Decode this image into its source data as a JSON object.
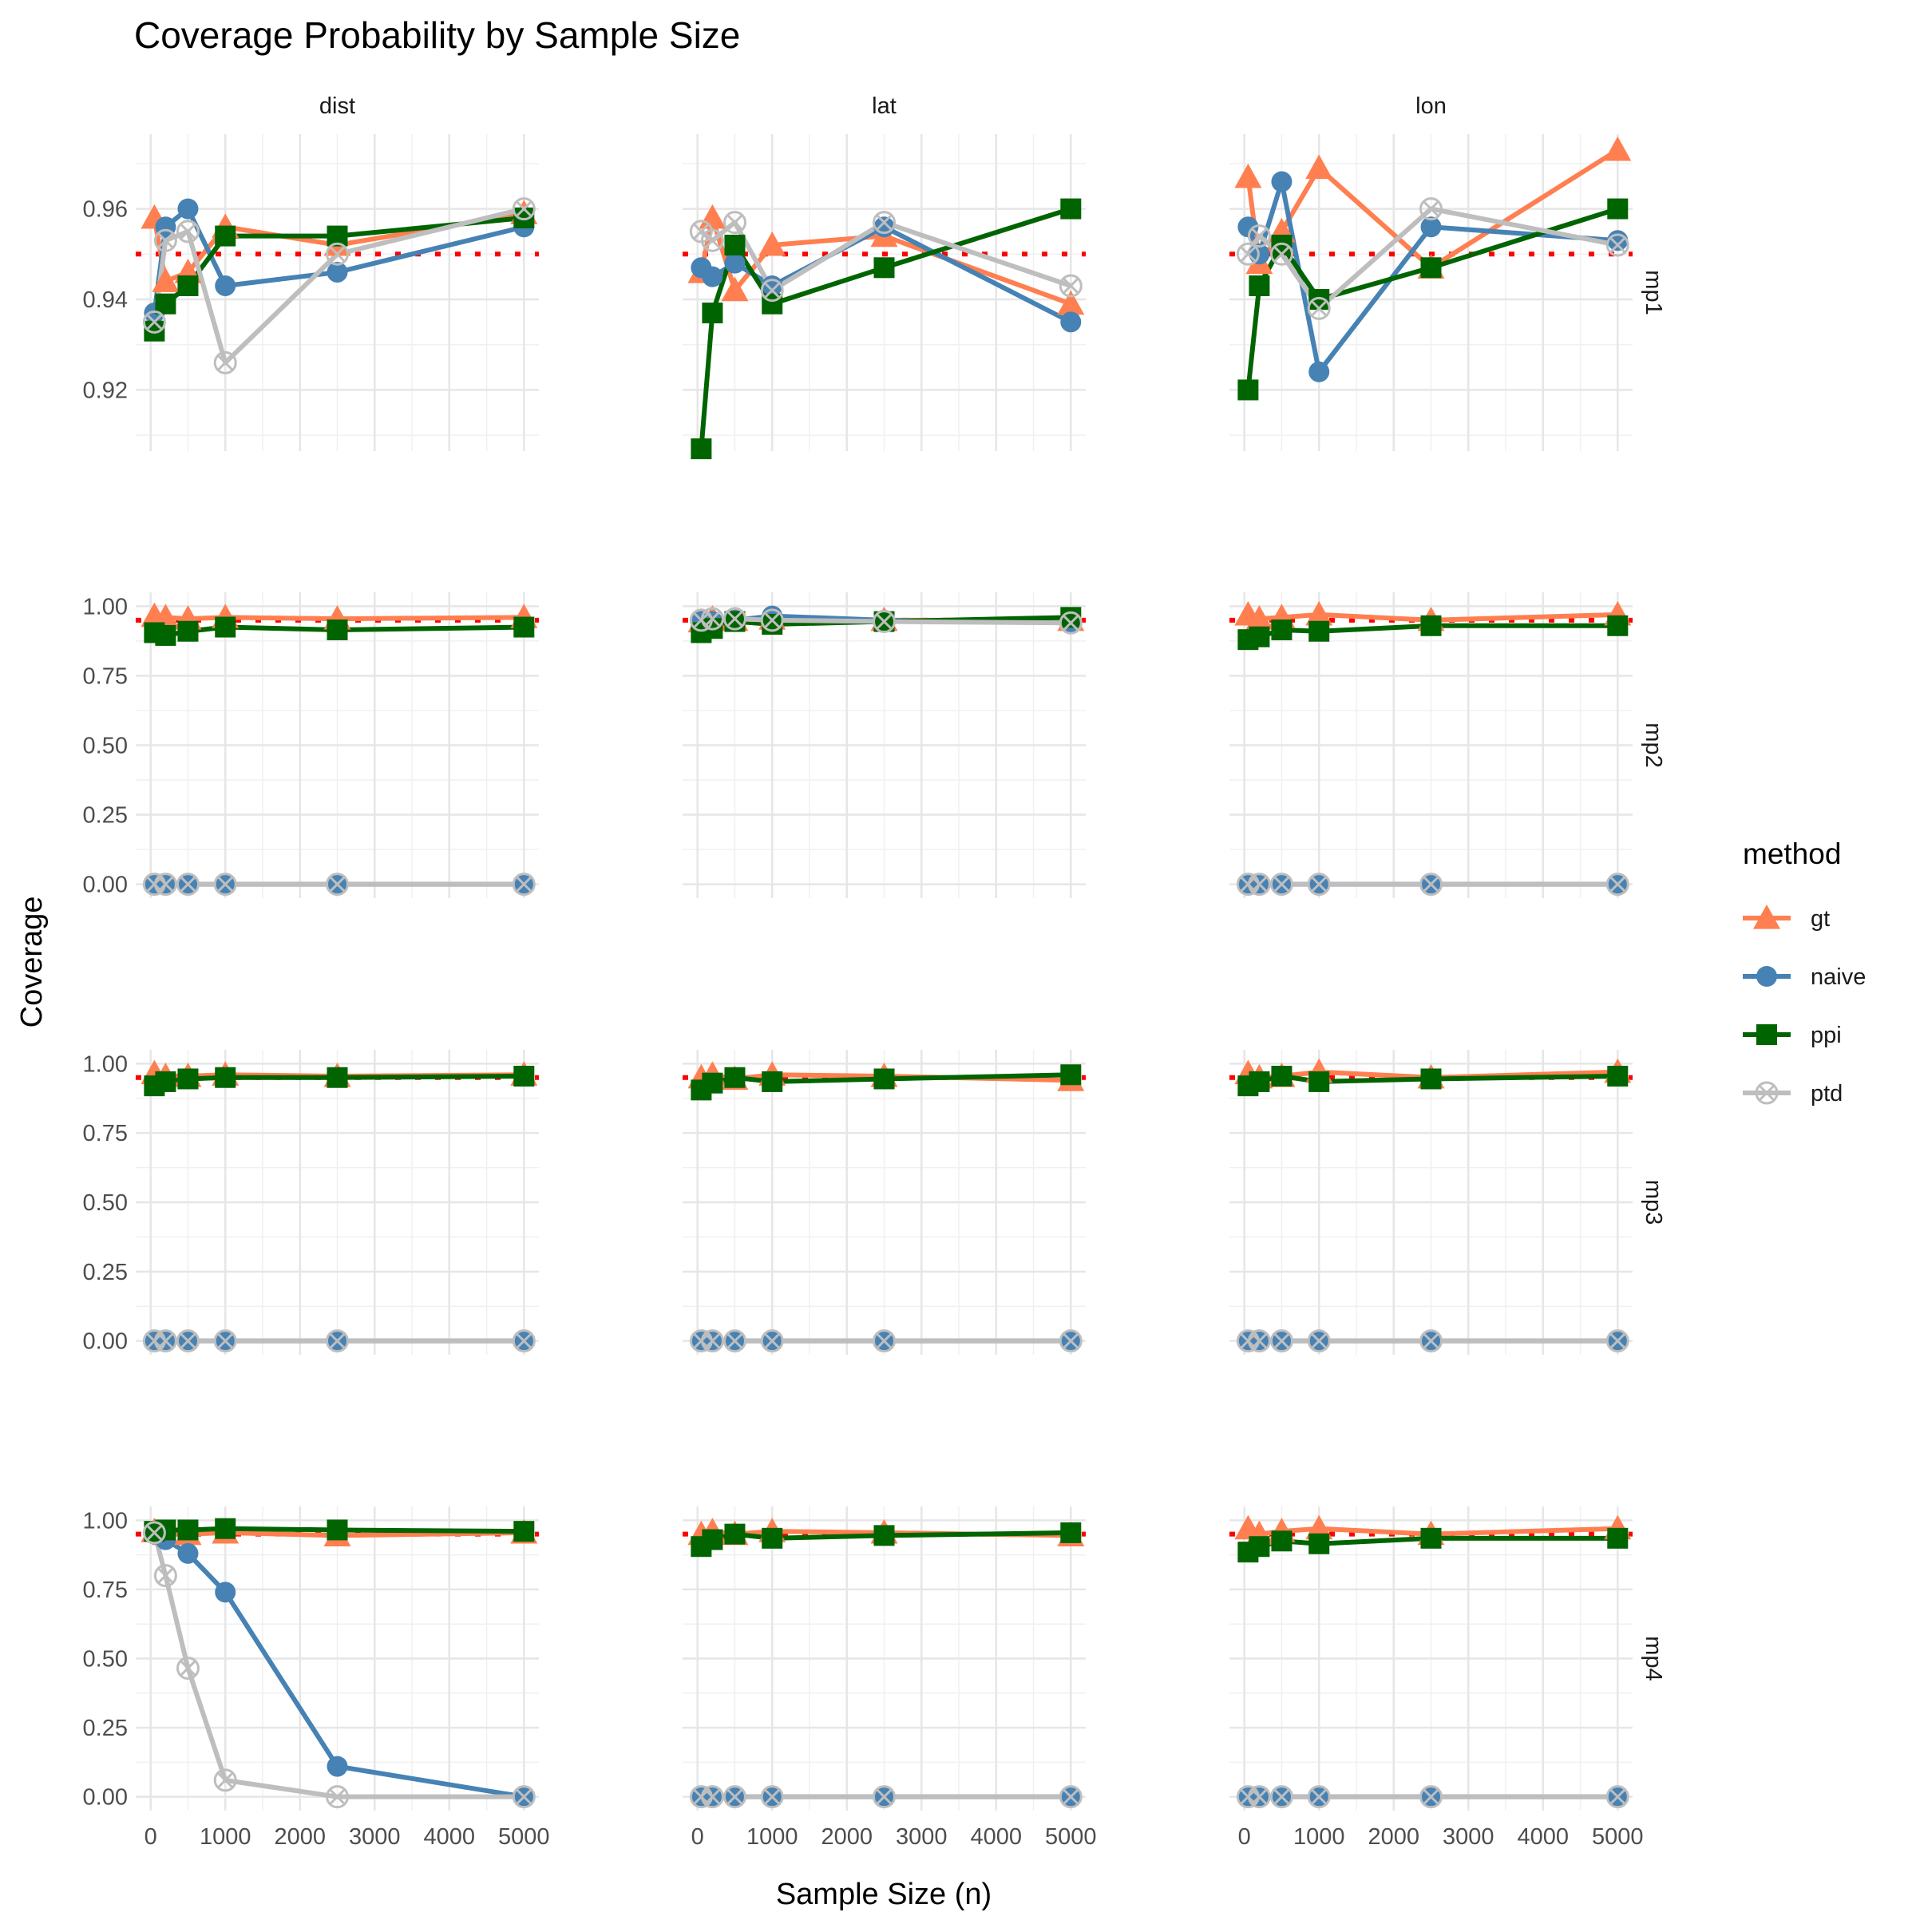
{
  "chart_data": {
    "type": "line",
    "title": "Coverage Probability by Sample Size",
    "xlabel": "Sample Size (n)",
    "ylabel": "Coverage",
    "columns": [
      "dist",
      "lat",
      "lon"
    ],
    "rows": [
      "mp1",
      "mp2",
      "mp3",
      "mp4"
    ],
    "x": [
      50,
      200,
      500,
      1000,
      2500,
      5000
    ],
    "xlim": [
      -200,
      5200
    ],
    "x_ticks": [
      0,
      1000,
      2000,
      3000,
      4000,
      5000
    ],
    "reference_line": 0.95,
    "legend": {
      "title": "method",
      "position": "right"
    },
    "grid": true,
    "row_axes": [
      {
        "ylim": [
          0.9065,
          0.9765
        ],
        "ticks": [
          0.92,
          0.94,
          0.96
        ],
        "tick_labels": [
          "0.92",
          "0.94",
          "0.96"
        ]
      },
      {
        "ylim": [
          -0.05,
          1.05
        ],
        "ticks": [
          0,
          0.25,
          0.5,
          0.75,
          1
        ],
        "tick_labels": [
          "0.00",
          "0.25",
          "0.50",
          "0.75",
          "1.00"
        ]
      },
      {
        "ylim": [
          -0.05,
          1.05
        ],
        "ticks": [
          0,
          0.25,
          0.5,
          0.75,
          1
        ],
        "tick_labels": [
          "0.00",
          "0.25",
          "0.50",
          "0.75",
          "1.00"
        ]
      },
      {
        "ylim": [
          -0.05,
          1.05
        ],
        "ticks": [
          0,
          0.25,
          0.5,
          0.75,
          1
        ],
        "tick_labels": [
          "0.00",
          "0.25",
          "0.50",
          "0.75",
          "1.00"
        ]
      }
    ],
    "methods": [
      {
        "name": "gt",
        "color": "#FF7F50",
        "shape": "triangle"
      },
      {
        "name": "naive",
        "color": "#4682B4",
        "shape": "circle"
      },
      {
        "name": "ppi",
        "color": "#006400",
        "shape": "square"
      },
      {
        "name": "ptd",
        "color": "#BEBEBE",
        "shape": "circle-x"
      }
    ],
    "panels": [
      {
        "row": "mp1",
        "col": "dist",
        "series": {
          "gt": [
            0.958,
            0.944,
            0.946,
            0.956,
            0.952,
            0.959
          ],
          "naive": [
            0.937,
            0.956,
            0.96,
            0.943,
            0.946,
            0.956
          ],
          "ppi": [
            0.933,
            0.939,
            0.943,
            0.954,
            0.954,
            0.958
          ],
          "ptd": [
            0.935,
            0.953,
            0.955,
            0.926,
            0.95,
            0.96
          ]
        }
      },
      {
        "row": "mp1",
        "col": "lat",
        "series": {
          "gt": [
            0.946,
            0.958,
            0.942,
            0.952,
            0.954,
            0.939
          ],
          "naive": [
            0.947,
            0.945,
            0.948,
            0.943,
            0.956,
            0.935
          ],
          "ppi": [
            0.907,
            0.937,
            0.952,
            0.939,
            0.947,
            0.96
          ],
          "ptd": [
            0.955,
            0.953,
            0.957,
            0.942,
            0.957,
            0.943
          ]
        }
      },
      {
        "row": "mp1",
        "col": "lon",
        "series": {
          "gt": [
            0.967,
            0.948,
            0.955,
            0.969,
            0.947,
            0.973
          ],
          "naive": [
            0.956,
            0.95,
            0.966,
            0.924,
            0.956,
            0.953
          ],
          "ppi": [
            0.92,
            0.943,
            0.952,
            0.94,
            0.947,
            0.96
          ],
          "ptd": [
            0.95,
            0.954,
            0.95,
            0.938,
            0.96,
            0.952
          ]
        }
      },
      {
        "row": "mp2",
        "col": "dist",
        "series": {
          "gt": [
            0.965,
            0.96,
            0.955,
            0.96,
            0.955,
            0.96
          ],
          "naive": [
            0,
            0,
            0,
            0,
            0,
            0
          ],
          "ppi": [
            0.905,
            0.895,
            0.91,
            0.925,
            0.915,
            0.925
          ],
          "ptd": [
            0,
            0,
            0,
            0,
            0,
            0
          ]
        }
      },
      {
        "row": "mp2",
        "col": "lat",
        "series": {
          "gt": [
            0.945,
            0.955,
            0.95,
            0.955,
            0.95,
            0.95
          ],
          "naive": [
            0.945,
            0.945,
            0.95,
            0.965,
            0.95,
            0.94
          ],
          "ppi": [
            0.905,
            0.92,
            0.945,
            0.935,
            0.945,
            0.96
          ],
          "ptd": [
            0.95,
            0.955,
            0.955,
            0.95,
            0.945,
            0.94
          ]
        }
      },
      {
        "row": "mp2",
        "col": "lon",
        "series": {
          "gt": [
            0.97,
            0.955,
            0.96,
            0.97,
            0.95,
            0.97
          ],
          "naive": [
            0,
            0,
            0,
            0,
            0,
            0
          ],
          "ppi": [
            0.88,
            0.89,
            0.915,
            0.91,
            0.93,
            0.93
          ],
          "ptd": [
            0,
            0,
            0,
            0,
            0,
            0
          ]
        }
      },
      {
        "row": "mp3",
        "col": "dist",
        "series": {
          "gt": [
            0.965,
            0.955,
            0.955,
            0.96,
            0.955,
            0.96
          ],
          "naive": [
            0,
            0,
            0,
            0,
            0,
            0
          ],
          "ppi": [
            0.92,
            0.935,
            0.945,
            0.95,
            0.95,
            0.955
          ],
          "ptd": [
            0,
            0,
            0,
            0,
            0,
            0
          ]
        }
      },
      {
        "row": "mp3",
        "col": "lat",
        "series": {
          "gt": [
            0.95,
            0.96,
            0.945,
            0.96,
            0.955,
            0.94
          ],
          "naive": [
            0,
            0,
            0,
            0,
            0,
            0
          ],
          "ppi": [
            0.905,
            0.93,
            0.95,
            0.935,
            0.945,
            0.96
          ],
          "ptd": [
            0,
            0,
            0,
            0,
            0,
            0
          ]
        }
      },
      {
        "row": "mp3",
        "col": "lon",
        "series": {
          "gt": [
            0.965,
            0.95,
            0.955,
            0.97,
            0.95,
            0.97
          ],
          "naive": [
            0,
            0,
            0,
            0,
            0,
            0
          ],
          "ppi": [
            0.92,
            0.935,
            0.955,
            0.935,
            0.945,
            0.955
          ],
          "ptd": [
            0,
            0,
            0,
            0,
            0,
            0
          ]
        }
      },
      {
        "row": "mp4",
        "col": "dist",
        "series": {
          "gt": [
            0.96,
            0.95,
            0.95,
            0.955,
            0.945,
            0.955
          ],
          "naive": [
            0.95,
            0.93,
            0.88,
            0.74,
            0.11,
            0
          ],
          "ppi": [
            0.96,
            0.965,
            0.965,
            0.97,
            0.965,
            0.96
          ],
          "ptd": [
            0.955,
            0.8,
            0.465,
            0.06,
            0,
            0
          ]
        }
      },
      {
        "row": "mp4",
        "col": "lat",
        "series": {
          "gt": [
            0.95,
            0.96,
            0.95,
            0.96,
            0.955,
            0.945
          ],
          "naive": [
            0,
            0,
            0,
            0,
            0,
            0
          ],
          "ppi": [
            0.905,
            0.93,
            0.95,
            0.935,
            0.945,
            0.955
          ],
          "ptd": [
            0,
            0,
            0,
            0,
            0,
            0
          ]
        }
      },
      {
        "row": "mp4",
        "col": "lon",
        "series": {
          "gt": [
            0.97,
            0.95,
            0.96,
            0.97,
            0.95,
            0.97
          ],
          "naive": [
            0,
            0,
            0,
            0,
            0,
            0
          ],
          "ppi": [
            0.885,
            0.905,
            0.925,
            0.915,
            0.935,
            0.935
          ],
          "ptd": [
            0,
            0,
            0,
            0,
            0,
            0
          ]
        }
      }
    ]
  }
}
